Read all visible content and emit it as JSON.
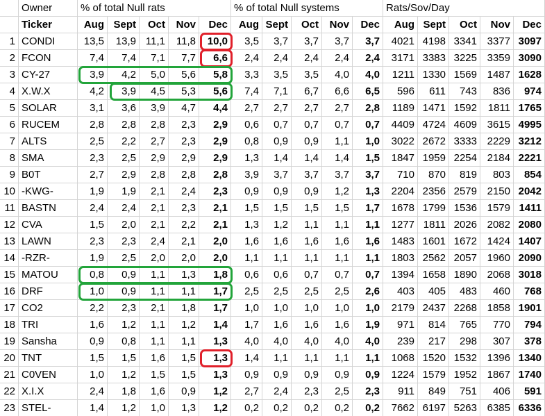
{
  "header": {
    "top": [
      "Owner",
      "% of total Null rats",
      "% of total Null systems",
      "Rats/Sov/Day"
    ],
    "columns": [
      "Ticker",
      "Aug",
      "Sept",
      "Oct",
      "Nov",
      "Dec",
      "Aug",
      "Sept",
      "Oct",
      "Nov",
      "Dec",
      "Aug",
      "Sept",
      "Oct",
      "Nov",
      "Dec"
    ]
  },
  "rows": [
    {
      "num": 1,
      "ticker": "CONDI",
      "cells": [
        "13,5",
        "13,9",
        "11,1",
        "11,8",
        "10,0",
        "3,5",
        "3,7",
        "3,7",
        "3,7",
        "3,7",
        "4021",
        "4198",
        "3341",
        "3377",
        "3097"
      ]
    },
    {
      "num": 2,
      "ticker": "FCON",
      "cells": [
        "7,4",
        "7,4",
        "7,1",
        "7,7",
        "6,6",
        "2,4",
        "2,4",
        "2,4",
        "2,4",
        "2,4",
        "3171",
        "3383",
        "3225",
        "3359",
        "3090"
      ]
    },
    {
      "num": 3,
      "ticker": "CY-27",
      "cells": [
        "3,9",
        "4,2",
        "5,0",
        "5,6",
        "5,8",
        "3,3",
        "3,5",
        "3,5",
        "4,0",
        "4,0",
        "1211",
        "1330",
        "1569",
        "1487",
        "1628"
      ]
    },
    {
      "num": 4,
      "ticker": "X.W.X",
      "cells": [
        "4,2",
        "3,9",
        "4,5",
        "5,3",
        "5,6",
        "7,4",
        "7,1",
        "6,7",
        "6,6",
        "6,5",
        "596",
        "611",
        "743",
        "836",
        "974"
      ]
    },
    {
      "num": 5,
      "ticker": "SOLAR",
      "cells": [
        "3,1",
        "3,6",
        "3,9",
        "4,7",
        "4,4",
        "2,7",
        "2,7",
        "2,7",
        "2,7",
        "2,8",
        "1189",
        "1471",
        "1592",
        "1811",
        "1765"
      ]
    },
    {
      "num": 6,
      "ticker": "RUCEM",
      "cells": [
        "2,8",
        "2,8",
        "2,8",
        "2,3",
        "2,9",
        "0,6",
        "0,7",
        "0,7",
        "0,7",
        "0,7",
        "4409",
        "4724",
        "4609",
        "3615",
        "4995"
      ]
    },
    {
      "num": 7,
      "ticker": "ALTS",
      "cells": [
        "2,5",
        "2,2",
        "2,7",
        "2,3",
        "2,9",
        "0,8",
        "0,9",
        "0,9",
        "1,1",
        "1,0",
        "3022",
        "2672",
        "3333",
        "2229",
        "3212"
      ]
    },
    {
      "num": 8,
      "ticker": "SMA",
      "cells": [
        "2,3",
        "2,5",
        "2,9",
        "2,9",
        "2,9",
        "1,3",
        "1,4",
        "1,4",
        "1,4",
        "1,5",
        "1847",
        "1959",
        "2254",
        "2184",
        "2221"
      ]
    },
    {
      "num": 9,
      "ticker": "B0T",
      "cells": [
        "2,7",
        "2,9",
        "2,8",
        "2,8",
        "2,8",
        "3,9",
        "3,7",
        "3,7",
        "3,7",
        "3,7",
        "710",
        "870",
        "819",
        "803",
        "854"
      ]
    },
    {
      "num": 10,
      "ticker": "-KWG-",
      "cells": [
        "1,9",
        "1,9",
        "2,1",
        "2,4",
        "2,3",
        "0,9",
        "0,9",
        "0,9",
        "1,2",
        "1,3",
        "2204",
        "2356",
        "2579",
        "2150",
        "2042"
      ]
    },
    {
      "num": 11,
      "ticker": "BASTN",
      "cells": [
        "2,4",
        "2,4",
        "2,1",
        "2,3",
        "2,1",
        "1,5",
        "1,5",
        "1,5",
        "1,5",
        "1,7",
        "1678",
        "1799",
        "1536",
        "1579",
        "1411"
      ]
    },
    {
      "num": 12,
      "ticker": "CVA",
      "cells": [
        "1,5",
        "2,0",
        "2,1",
        "2,2",
        "2,1",
        "1,3",
        "1,2",
        "1,1",
        "1,1",
        "1,1",
        "1277",
        "1811",
        "2026",
        "2082",
        "2080"
      ]
    },
    {
      "num": 13,
      "ticker": "LAWN",
      "cells": [
        "2,3",
        "2,3",
        "2,4",
        "2,1",
        "2,0",
        "1,6",
        "1,6",
        "1,6",
        "1,6",
        "1,6",
        "1483",
        "1601",
        "1672",
        "1424",
        "1407"
      ]
    },
    {
      "num": 14,
      "ticker": "-RZR-",
      "cells": [
        "1,9",
        "2,5",
        "2,0",
        "2,0",
        "2,0",
        "1,1",
        "1,1",
        "1,1",
        "1,1",
        "1,1",
        "1803",
        "2562",
        "2057",
        "1960",
        "2090"
      ]
    },
    {
      "num": 15,
      "ticker": "MATOU",
      "cells": [
        "0,8",
        "0,9",
        "1,1",
        "1,3",
        "1,8",
        "0,6",
        "0,6",
        "0,7",
        "0,7",
        "0,7",
        "1394",
        "1658",
        "1890",
        "2068",
        "3018"
      ]
    },
    {
      "num": 16,
      "ticker": "DRF",
      "cells": [
        "1,0",
        "0,9",
        "1,1",
        "1,1",
        "1,7",
        "2,5",
        "2,5",
        "2,5",
        "2,5",
        "2,6",
        "403",
        "405",
        "483",
        "460",
        "768"
      ]
    },
    {
      "num": 17,
      "ticker": "CO2",
      "cells": [
        "2,2",
        "2,3",
        "2,1",
        "1,8",
        "1,7",
        "1,0",
        "1,0",
        "1,0",
        "1,0",
        "1,0",
        "2179",
        "2437",
        "2268",
        "1858",
        "1901"
      ]
    },
    {
      "num": 18,
      "ticker": "TRI",
      "cells": [
        "1,6",
        "1,2",
        "1,1",
        "1,2",
        "1,4",
        "1,7",
        "1,6",
        "1,6",
        "1,6",
        "1,9",
        "971",
        "814",
        "765",
        "770",
        "794"
      ]
    },
    {
      "num": 19,
      "ticker": "Sansha",
      "cells": [
        "0,9",
        "0,8",
        "1,1",
        "1,1",
        "1,3",
        "4,0",
        "4,0",
        "4,0",
        "4,0",
        "4,0",
        "239",
        "217",
        "298",
        "307",
        "378"
      ]
    },
    {
      "num": 20,
      "ticker": "TNT",
      "cells": [
        "1,5",
        "1,5",
        "1,6",
        "1,5",
        "1,3",
        "1,4",
        "1,1",
        "1,1",
        "1,1",
        "1,1",
        "1068",
        "1520",
        "1532",
        "1396",
        "1340"
      ]
    },
    {
      "num": 21,
      "ticker": "C0VEN",
      "cells": [
        "1,0",
        "1,2",
        "1,5",
        "1,5",
        "1,3",
        "0,9",
        "0,9",
        "0,9",
        "0,9",
        "0,9",
        "1224",
        "1579",
        "1952",
        "1867",
        "1740"
      ]
    },
    {
      "num": 22,
      "ticker": "X.I.X",
      "cells": [
        "2,4",
        "1,8",
        "1,6",
        "0,9",
        "1,2",
        "2,7",
        "2,4",
        "2,3",
        "2,5",
        "2,3",
        "911",
        "849",
        "751",
        "406",
        "591"
      ]
    },
    {
      "num": 23,
      "ticker": "STEL-",
      "cells": [
        "1,4",
        "1,2",
        "1,0",
        "1,3",
        "1,2",
        "0,2",
        "0,2",
        "0,2",
        "0,2",
        "0,2",
        "7662",
        "6197",
        "5263",
        "6385",
        "6336"
      ]
    }
  ]
}
